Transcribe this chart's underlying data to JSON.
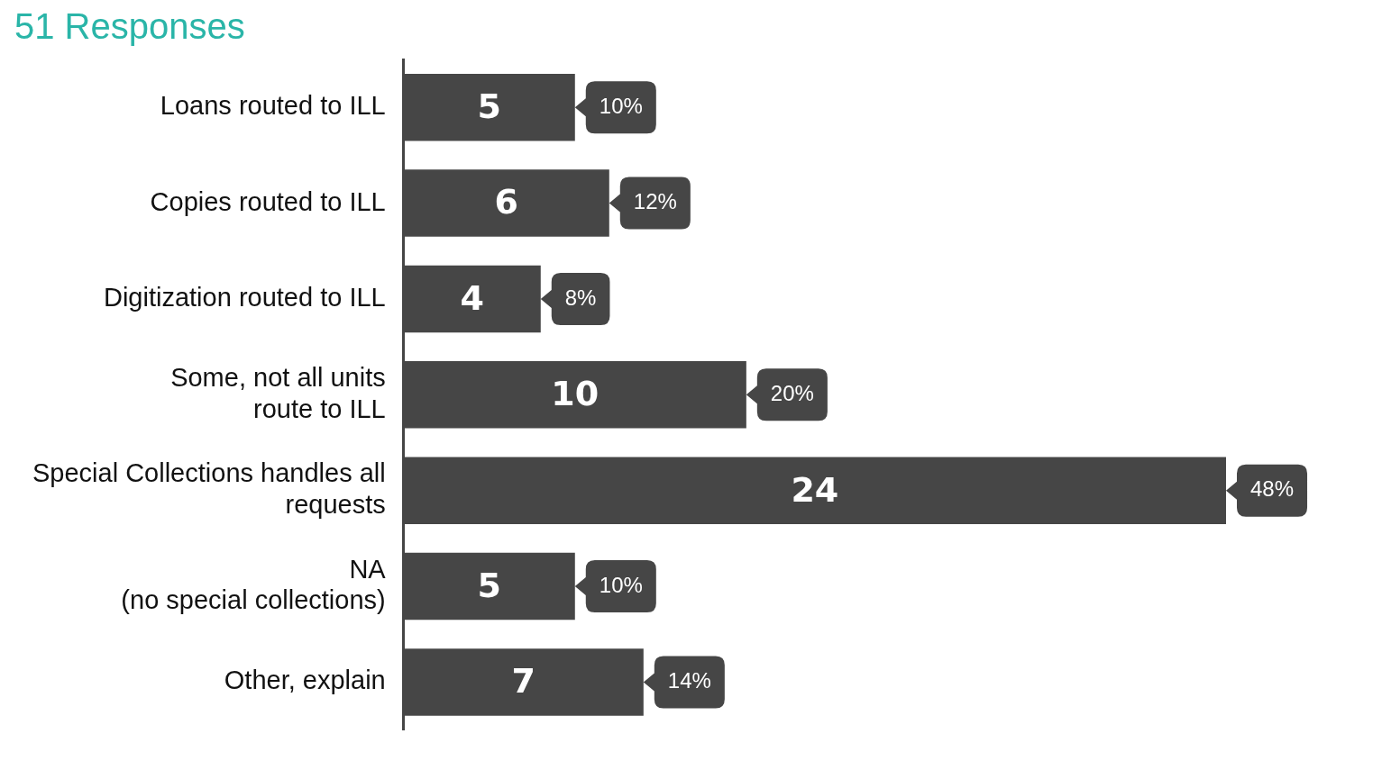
{
  "chart_data": {
    "type": "bar",
    "orientation": "horizontal",
    "title": "51 Responses",
    "categories": [
      "Loans routed to ILL",
      "Copies routed to ILL",
      "Digitization routed to ILL",
      "Some, not all units\nroute to ILL",
      "Special Collections handles all\nrequests",
      "NA\n(no special collections)",
      "Other, explain"
    ],
    "values": [
      5,
      6,
      4,
      10,
      24,
      5,
      7
    ],
    "color": "#464646",
    "data_labels": true,
    "annotations": [
      {
        "text": "10%",
        "x": 5,
        "y": "Loans routed to ILL"
      },
      {
        "text": "12%",
        "x": 6,
        "y": "Copies routed to ILL"
      },
      {
        "text": "8%",
        "x": 4,
        "y": "Digitization routed to ILL"
      },
      {
        "text": "20%",
        "x": 10,
        "y": "Some, not all units\nroute to ILL"
      },
      {
        "text": "48%",
        "x": 24,
        "y": "Special Collections handles all\nrequests"
      },
      {
        "text": "10%",
        "x": 5,
        "y": "NA\n(no special collections)"
      },
      {
        "text": "14%",
        "x": 7,
        "y": "Other, explain"
      }
    ],
    "legend": false
  }
}
